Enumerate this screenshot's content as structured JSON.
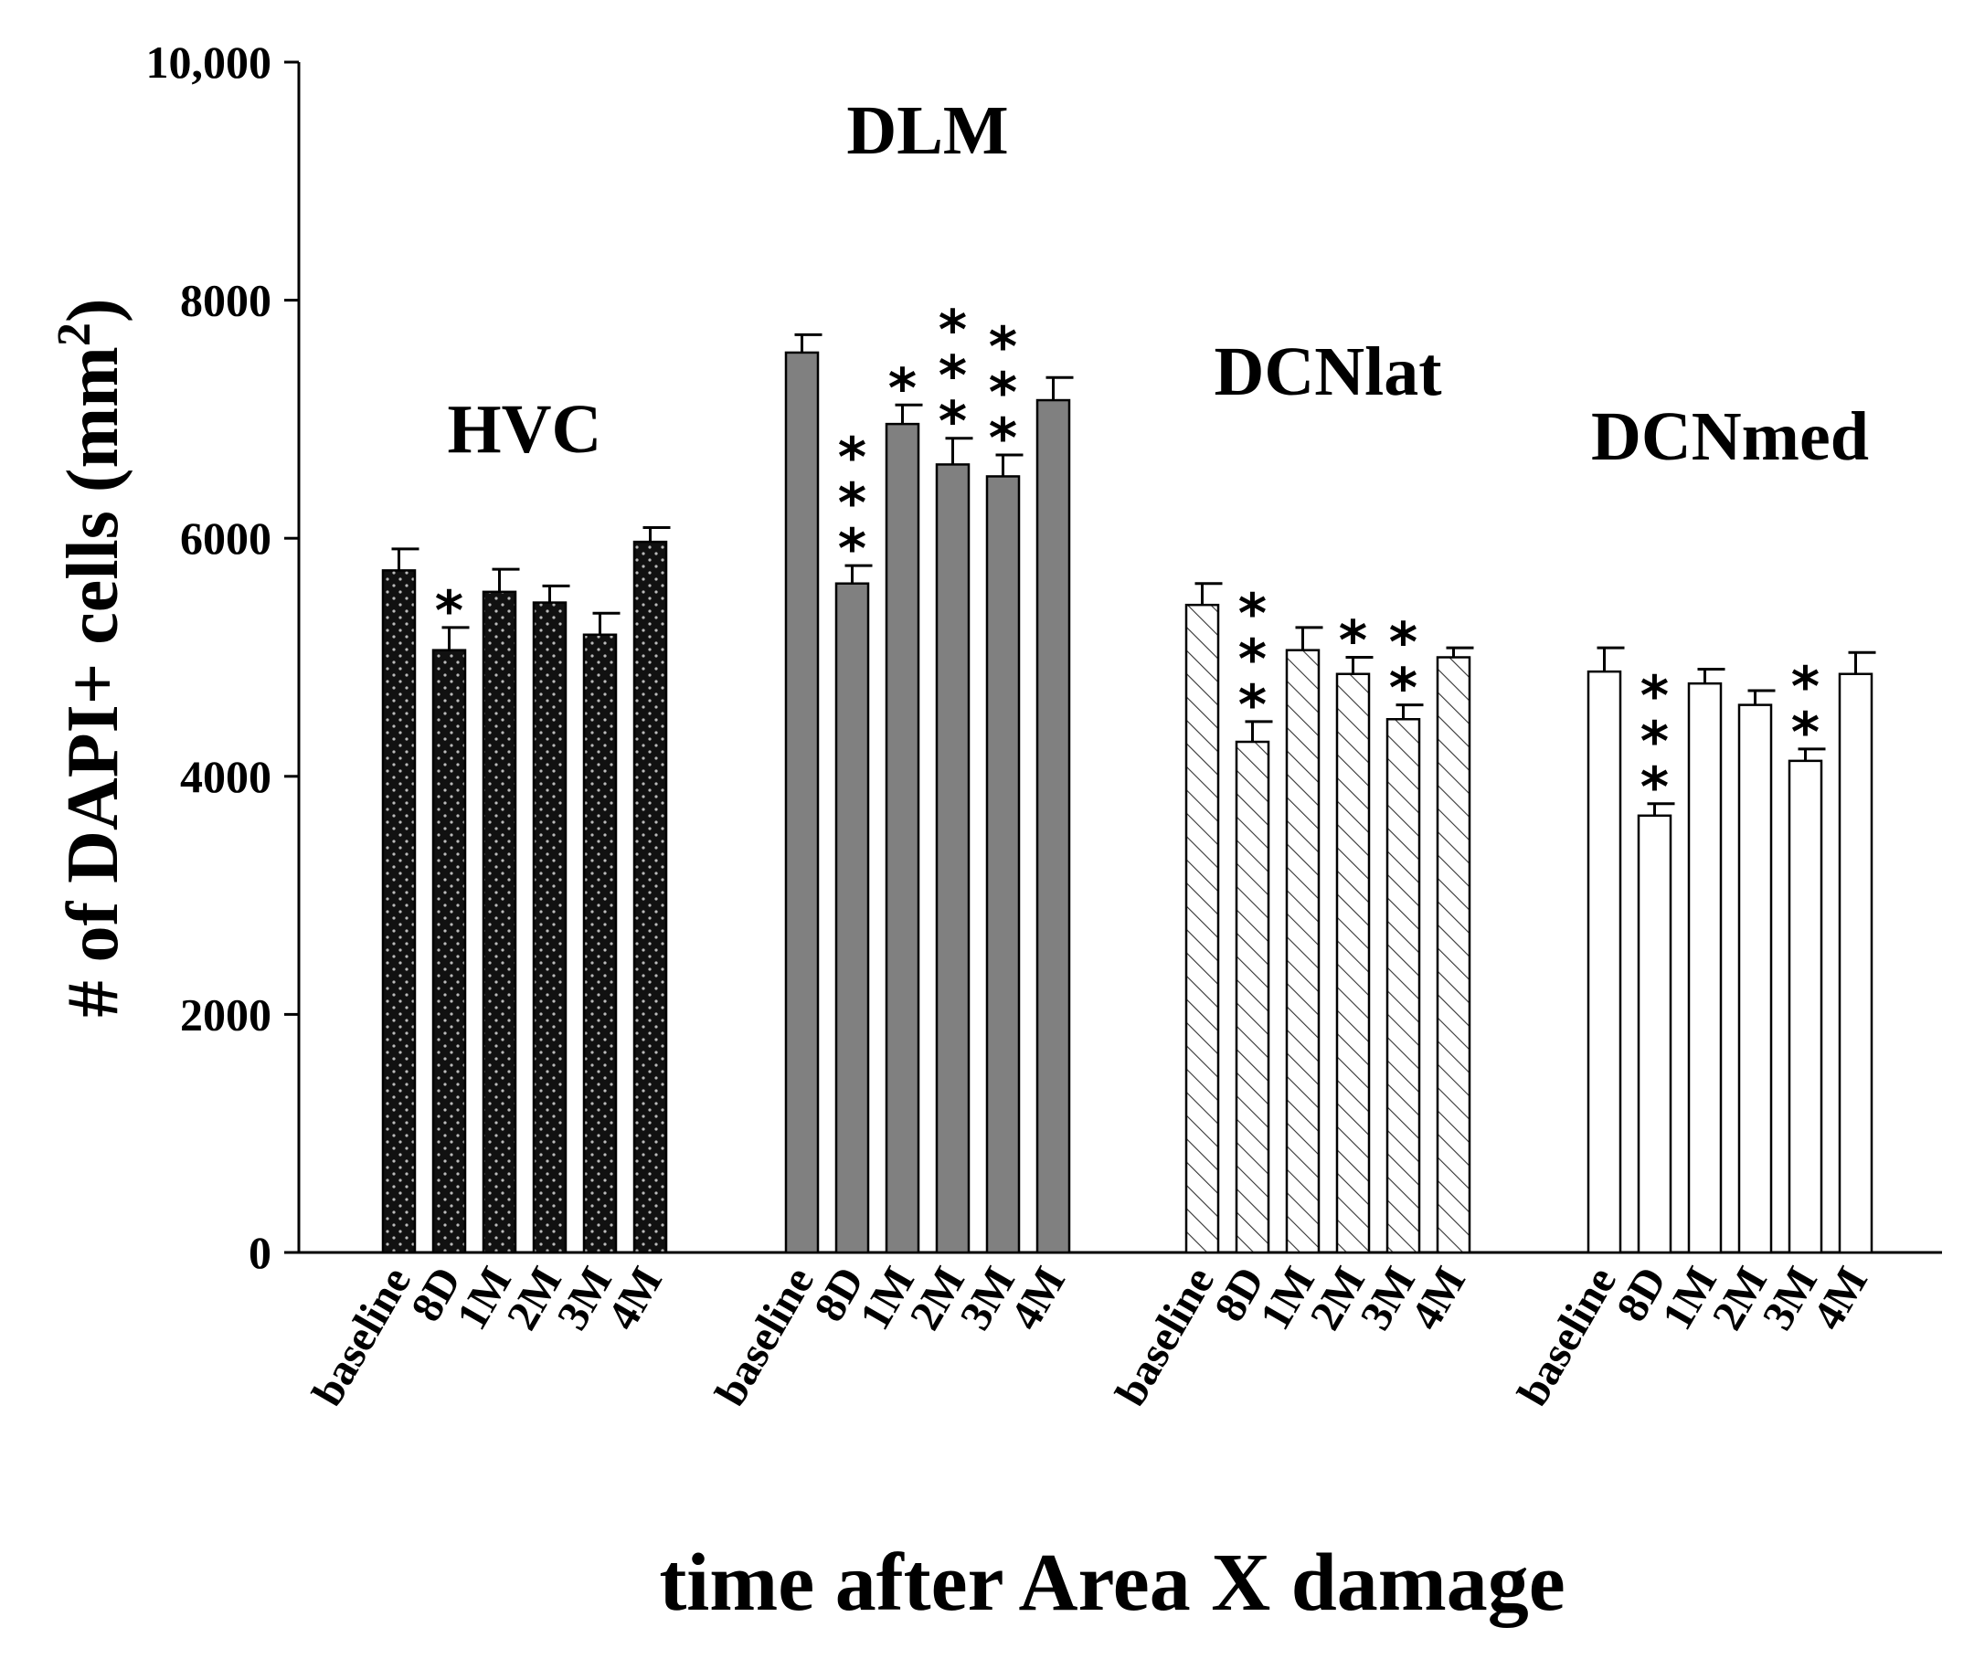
{
  "chart_data": {
    "type": "bar",
    "title": "",
    "ylabel_main": "# of DAPI+ cells (mm",
    "ylabel_sup": "2",
    "ylabel_close": ")",
    "xlabel": "time after Area X damage",
    "ylim": [
      0,
      10000
    ],
    "yticks": [
      0,
      2000,
      4000,
      6000,
      8000,
      10000
    ],
    "ytick_labels": [
      "0",
      "2000",
      "4000",
      "6000",
      "8000",
      "10,000"
    ],
    "categories": [
      "baseline",
      "8D",
      "1M",
      "2M",
      "3M",
      "4M"
    ],
    "groups": [
      {
        "name": "HVC",
        "style": "dotted-black",
        "values": [
          5730,
          5060,
          5550,
          5460,
          5190,
          5970
        ],
        "errors": [
          180,
          190,
          190,
          140,
          180,
          120
        ],
        "stars": [
          0,
          1,
          0,
          0,
          0,
          0
        ]
      },
      {
        "name": "DLM",
        "style": "gray",
        "values": [
          7560,
          5620,
          6960,
          6620,
          6520,
          7160
        ],
        "errors": [
          150,
          150,
          160,
          220,
          180,
          190
        ],
        "stars": [
          0,
          3,
          1,
          3,
          3,
          0
        ]
      },
      {
        "name": "DCNlat",
        "style": "hatched",
        "values": [
          5440,
          4290,
          5060,
          4860,
          4480,
          5000
        ],
        "errors": [
          180,
          170,
          190,
          140,
          120,
          80
        ],
        "stars": [
          0,
          3,
          0,
          1,
          2,
          0
        ]
      },
      {
        "name": "DCNmed",
        "style": "white",
        "values": [
          4880,
          3670,
          4780,
          4600,
          4130,
          4860
        ],
        "errors": [
          200,
          100,
          120,
          120,
          100,
          180
        ],
        "stars": [
          0,
          3,
          0,
          0,
          2,
          0
        ]
      }
    ],
    "star_symbol": "*"
  }
}
